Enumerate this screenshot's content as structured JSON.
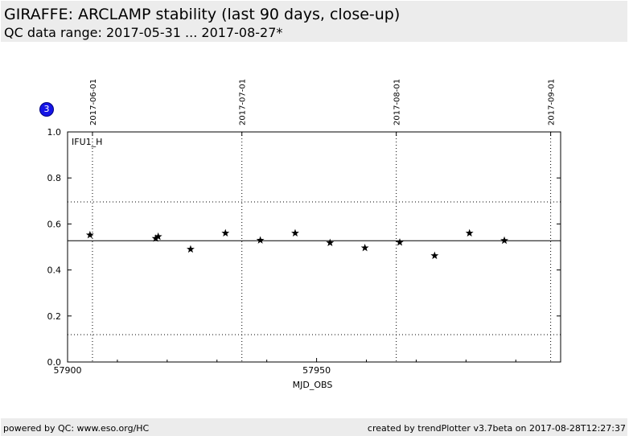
{
  "header": {
    "title": "GIRAFFE: ARCLAMP stability (last 90 days, close-up)",
    "subtitle": "QC data range: 2017-05-31 ... 2017-08-27*"
  },
  "badge": {
    "label": "3"
  },
  "footer": {
    "left": "powered by QC: www.eso.org/HC",
    "right": "created by trendPlotter v3.7beta on 2017-08-28T12:27:37"
  },
  "chart_data": {
    "type": "scatter",
    "panel_label": "IFU1_H",
    "xlabel": "MJD_OBS",
    "ylabel": "",
    "xlim": [
      57900,
      57999
    ],
    "ylim": [
      0.0,
      1.0
    ],
    "x_ticks_major": [
      57900,
      57950
    ],
    "x_ticks_minor": [
      57910,
      57920,
      57930,
      57940,
      57960,
      57970,
      57980,
      57990
    ],
    "y_ticks": [
      0.0,
      0.2,
      0.4,
      0.6,
      0.8,
      1.0
    ],
    "y_tick_labels": [
      "0.0",
      "0.2",
      "0.4",
      "0.6",
      "0.8",
      "1.0"
    ],
    "x_tick_labels": [
      "57900",
      "57950"
    ],
    "date_ticks": [
      {
        "mjd": 57905,
        "label": "2017-06-01"
      },
      {
        "mjd": 57935,
        "label": "2017-07-01"
      },
      {
        "mjd": 57966,
        "label": "2017-08-01"
      },
      {
        "mjd": 57997,
        "label": "2017-09-01"
      }
    ],
    "mean_line": 0.527,
    "limit_lines": [
      0.119,
      0.696
    ],
    "marker": "star",
    "points": [
      {
        "x": 57904.5,
        "y": 0.552
      },
      {
        "x": 57917.7,
        "y": 0.537
      },
      {
        "x": 57918.2,
        "y": 0.545
      },
      {
        "x": 57924.7,
        "y": 0.49
      },
      {
        "x": 57931.7,
        "y": 0.56
      },
      {
        "x": 57938.7,
        "y": 0.529
      },
      {
        "x": 57945.7,
        "y": 0.56
      },
      {
        "x": 57952.7,
        "y": 0.518
      },
      {
        "x": 57959.7,
        "y": 0.496
      },
      {
        "x": 57966.7,
        "y": 0.52
      },
      {
        "x": 57973.7,
        "y": 0.462
      },
      {
        "x": 57980.7,
        "y": 0.56
      },
      {
        "x": 57987.7,
        "y": 0.528
      }
    ],
    "grid": "dotted verticals at date ticks",
    "colors": {
      "marker": "#000000",
      "lines": "#000000",
      "badge": "#1515e6"
    }
  }
}
